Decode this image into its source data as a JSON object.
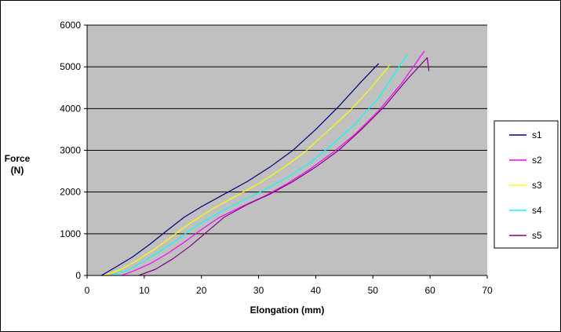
{
  "chart_data": {
    "type": "line",
    "title": "",
    "xlabel": "Elongation  (mm)",
    "ylabel_lines": [
      "Force",
      "(N)"
    ],
    "xlim": [
      0,
      70
    ],
    "ylim": [
      0,
      6000
    ],
    "x_ticks": [
      0,
      10,
      20,
      30,
      40,
      50,
      60,
      70
    ],
    "y_ticks": [
      0,
      1000,
      2000,
      3000,
      4000,
      5000,
      6000
    ],
    "grid": "horizontal",
    "legend_position": "right",
    "plot_background": "#c0c0c0",
    "series": [
      {
        "name": "s1",
        "color": "#000080",
        "x": [
          2.5,
          5,
          8,
          11,
          14,
          17,
          20,
          24,
          28,
          32,
          36,
          40,
          44,
          48,
          51
        ],
        "y": [
          0,
          200,
          450,
          750,
          1080,
          1400,
          1650,
          1950,
          2250,
          2600,
          3000,
          3500,
          4050,
          4650,
          5080
        ]
      },
      {
        "name": "s2",
        "color": "#ff00ff",
        "x": [
          6,
          8,
          11,
          14,
          17,
          20,
          23,
          27,
          31,
          35,
          39,
          43,
          47,
          51,
          55,
          59
        ],
        "y": [
          0,
          100,
          280,
          520,
          800,
          1100,
          1380,
          1650,
          1900,
          2200,
          2550,
          2950,
          3400,
          3950,
          4600,
          5380
        ]
      },
      {
        "name": "s3",
        "color": "#ffff00",
        "x": [
          3,
          6,
          9,
          12,
          15,
          18,
          22,
          26,
          30,
          34,
          38,
          42,
          46,
          50,
          53
        ],
        "y": [
          0,
          150,
          380,
          650,
          950,
          1250,
          1600,
          1900,
          2200,
          2550,
          2950,
          3450,
          3950,
          4550,
          5050
        ]
      },
      {
        "name": "s4",
        "color": "#00ffff",
        "x": [
          4,
          7,
          10,
          13,
          16,
          19,
          23,
          27,
          31,
          35,
          39,
          43,
          47,
          51,
          56
        ],
        "y": [
          0,
          120,
          350,
          600,
          880,
          1180,
          1500,
          1780,
          2050,
          2350,
          2700,
          3150,
          3650,
          4250,
          5300
        ]
      },
      {
        "name": "s5",
        "color": "#800080",
        "x": [
          9,
          12,
          15,
          18,
          21,
          24,
          28,
          32,
          36,
          40,
          44,
          48,
          52,
          56,
          59.5,
          59.8
        ],
        "y": [
          0,
          150,
          400,
          700,
          1050,
          1400,
          1700,
          1950,
          2250,
          2600,
          3000,
          3500,
          4050,
          4700,
          5220,
          4900
        ]
      }
    ]
  }
}
